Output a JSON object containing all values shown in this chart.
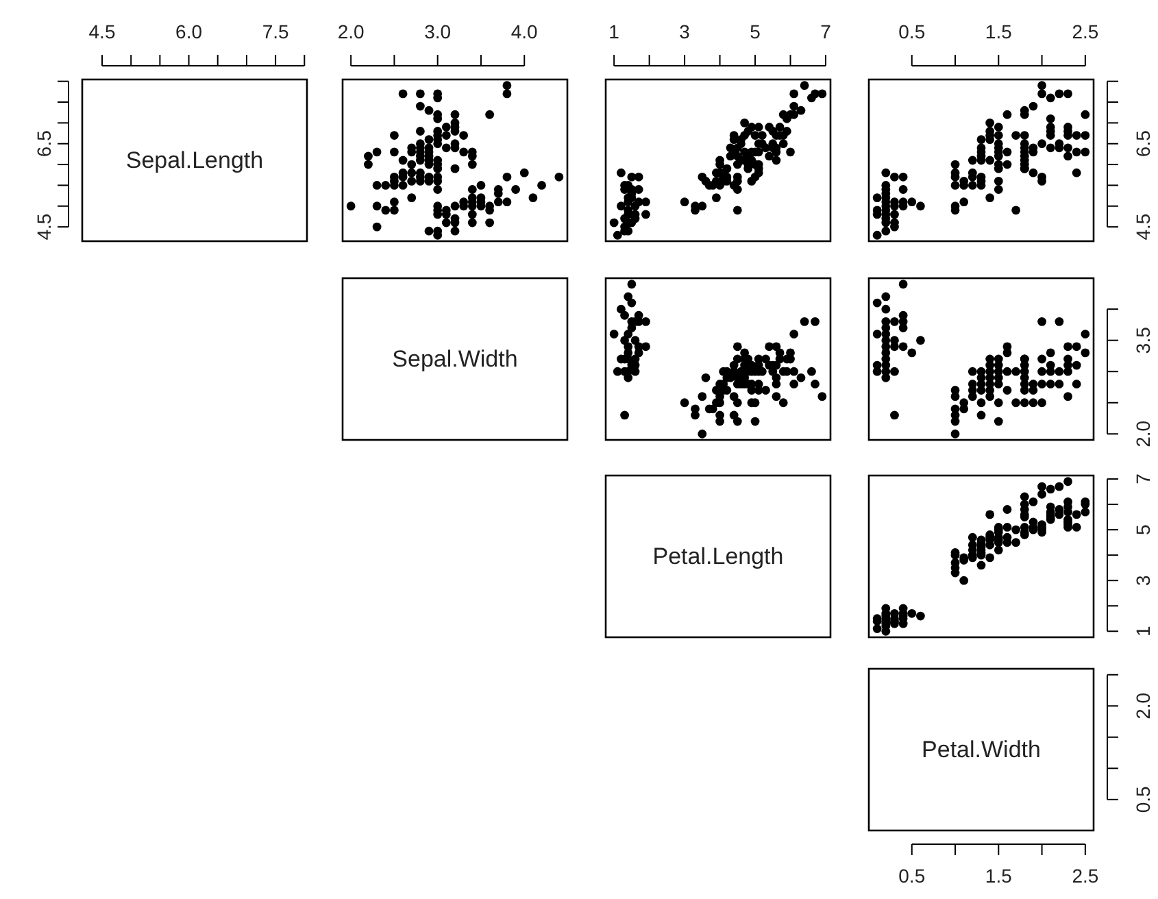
{
  "chart_data": [
    {
      "type": "scatter",
      "title": "Sepal.Length",
      "xlim": [
        4.156,
        8.044
      ],
      "xticks": [
        4.5,
        {
          "value": 5,
          "label": null
        },
        {
          "value": 5.5,
          "label": null
        },
        {
          "value": 6,
          "label": "6.0"
        },
        {
          "value": 6.5,
          "label": null
        },
        {
          "value": 7,
          "label": null
        },
        7.5,
        {
          "value": 8,
          "label": null
        }
      ],
      "ylim": [
        4.156,
        8.044
      ],
      "yticks": [
        4.5,
        {
          "value": 5,
          "label": null
        },
        {
          "value": 5.5,
          "label": null
        },
        {
          "value": 6,
          "label": null
        },
        6.5,
        {
          "value": 7,
          "label": null
        },
        {
          "value": 7.5,
          "label": null
        },
        {
          "value": 8,
          "label": null
        }
      ]
    },
    {
      "type": "scatter",
      "marker": "circle",
      "tick_labels": "x",
      "xlim": [
        1.904,
        4.496
      ],
      "xticks": [
        {
          "value": 2,
          "label": "2.0"
        },
        {
          "value": 2.5,
          "label": null
        },
        {
          "value": 3,
          "label": "3.0"
        },
        {
          "value": 3.5,
          "label": null
        },
        {
          "value": 4,
          "label": "4.0"
        }
      ],
      "ylim": [
        4.156,
        8.044
      ],
      "series": [
        {
          "color": "#000000",
          "x": [
            3.5,
            3.0,
            3.2,
            3.1,
            3.6,
            3.9,
            3.4,
            3.4,
            2.9,
            3.1,
            3.7,
            3.4,
            3.0,
            3.0,
            4.0,
            4.4,
            3.8,
            3.8,
            3.4,
            3.7,
            3.6,
            3.3,
            3.0,
            3.5,
            3.4,
            3.1,
            4.1,
            4.2,
            3.2,
            3.5,
            3.6,
            3.0,
            3.4,
            3.5,
            2.3,
            3.2,
            3.2,
            3.7,
            3.3,
            3.2,
            3.2,
            3.1,
            2.3,
            2.8,
            2.8,
            3.3,
            2.4,
            2.9,
            2.7,
            2.0,
            3.0,
            2.2,
            2.9,
            2.9,
            3.1,
            3.0,
            2.7,
            2.2,
            2.5,
            3.2,
            2.8,
            2.5,
            2.9,
            3.0,
            2.8,
            3.0,
            2.9,
            2.6,
            2.4,
            2.7,
            3.0,
            3.4,
            2.3,
            2.5,
            2.6,
            3.0,
            2.6,
            2.3,
            2.7,
            3.0,
            2.9,
            2.9,
            2.5,
            3.0,
            2.9,
            3.0,
            3.0,
            2.5,
            2.9,
            2.5,
            3.6,
            3.2,
            2.7,
            3.0,
            2.5,
            2.8,
            3.8,
            2.6,
            3.2,
            2.8,
            2.8,
            2.7,
            3.3,
            3.2,
            2.8,
            2.8,
            3.0,
            2.8,
            3.8,
            2.8,
            2.6,
            3.0,
            3.4,
            3.1,
            3.0,
            3.2,
            3.4
          ],
          "values": [
            5.1,
            4.9,
            4.7,
            4.6,
            5.0,
            5.4,
            4.6,
            5.0,
            4.4,
            4.9,
            5.4,
            4.8,
            4.8,
            4.3,
            5.8,
            5.7,
            5.7,
            5.1,
            5.4,
            5.1,
            4.6,
            5.1,
            5.0,
            5.2,
            5.2,
            4.8,
            5.2,
            5.5,
            5.0,
            5.5,
            4.9,
            4.4,
            5.1,
            5.0,
            4.5,
            4.4,
            4.6,
            5.3,
            5.0,
            7.0,
            6.4,
            6.9,
            5.5,
            6.5,
            5.7,
            6.3,
            4.9,
            6.6,
            5.2,
            5.0,
            5.9,
            6.0,
            6.1,
            5.6,
            6.7,
            5.6,
            5.8,
            6.2,
            5.6,
            5.9,
            6.1,
            6.3,
            6.4,
            6.6,
            6.8,
            6.7,
            6.0,
            5.7,
            5.5,
            6.0,
            5.4,
            6.0,
            6.3,
            5.5,
            5.5,
            6.1,
            5.8,
            5.0,
            5.6,
            5.7,
            5.7,
            6.2,
            5.1,
            7.1,
            6.3,
            6.5,
            7.6,
            4.9,
            7.3,
            6.7,
            7.2,
            6.5,
            6.4,
            6.8,
            5.7,
            5.8,
            7.7,
            7.7,
            6.9,
            5.6,
            7.7,
            6.3,
            6.7,
            7.2,
            6.2,
            6.4,
            7.2,
            7.4,
            7.9,
            6.3,
            6.1,
            7.7,
            6.3,
            6.4,
            6.0,
            6.8,
            6.2
          ]
        }
      ]
    },
    {
      "type": "scatter",
      "marker": "circle",
      "tick_labels": "x",
      "xlim": [
        0.764,
        7.136
      ],
      "xticks": [
        1,
        {
          "value": 2,
          "label": null
        },
        3,
        {
          "value": 4,
          "label": null
        },
        5,
        {
          "value": 6,
          "label": null
        },
        7
      ],
      "ylim": [
        4.156,
        8.044
      ],
      "series": [
        {
          "color": "#000000",
          "x": [
            1.4,
            1.4,
            1.3,
            1.5,
            1.7,
            1.4,
            1.4,
            1.5,
            1.6,
            1.4,
            1.1,
            1.2,
            1.5,
            1.3,
            1.7,
            1.0,
            1.7,
            1.9,
            1.6,
            1.5,
            1.4,
            1.6,
            1.4,
            1.2,
            1.3,
            1.3,
            1.3,
            1.9,
            1.5,
            4.7,
            4.5,
            4.9,
            4.0,
            4.6,
            4.5,
            4.7,
            3.3,
            4.6,
            3.9,
            3.5,
            4.2,
            4.0,
            4.7,
            3.6,
            4.4,
            4.5,
            4.1,
            4.5,
            3.9,
            4.8,
            4.0,
            4.9,
            4.3,
            4.4,
            4.8,
            5.0,
            4.5,
            3.5,
            3.8,
            3.7,
            3.9,
            5.1,
            4.5,
            4.7,
            4.4,
            4.1,
            4.4,
            4.6,
            4.0,
            3.3,
            4.2,
            4.2,
            4.3,
            3.0,
            4.1,
            6.0,
            5.1,
            5.9,
            5.6,
            5.8,
            6.6,
            4.5,
            6.3,
            5.8,
            6.1,
            5.1,
            5.3,
            5.5,
            5.0,
            5.5,
            6.7,
            6.9,
            5.0,
            5.7,
            4.9,
            5.7,
            6.0,
            4.8,
            4.9,
            5.6,
            5.8,
            6.1,
            6.4,
            5.1,
            5.6,
            6.1,
            5.5,
            4.8,
            5.4,
            5.6,
            5.1,
            5.9,
            5.2,
            5.0,
            5.2,
            5.4,
            5.1
          ],
          "values": [
            5.1,
            4.9,
            4.7,
            4.6,
            5.4,
            4.6,
            4.4,
            5.4,
            4.8,
            4.8,
            4.3,
            5.8,
            5.7,
            5.4,
            5.7,
            4.6,
            5.1,
            4.8,
            5.0,
            5.2,
            5.2,
            4.7,
            5.5,
            5.0,
            5.5,
            4.4,
            4.5,
            5.1,
            5.3,
            7.0,
            6.4,
            6.9,
            5.5,
            6.5,
            5.7,
            6.3,
            4.9,
            6.6,
            5.2,
            5.0,
            5.9,
            6.0,
            6.1,
            5.6,
            6.7,
            5.6,
            5.8,
            6.2,
            5.6,
            5.9,
            6.1,
            6.3,
            6.4,
            6.6,
            6.8,
            6.7,
            6.0,
            5.7,
            5.5,
            5.5,
            5.8,
            6.0,
            5.4,
            6.7,
            6.3,
            5.6,
            5.5,
            6.1,
            5.8,
            5.0,
            5.6,
            5.7,
            6.2,
            5.1,
            5.7,
            6.3,
            5.8,
            7.1,
            6.3,
            6.5,
            7.6,
            4.9,
            7.3,
            6.7,
            7.2,
            6.5,
            6.4,
            6.8,
            5.7,
            6.5,
            7.7,
            7.7,
            6.0,
            6.9,
            5.6,
            6.7,
            7.2,
            6.2,
            6.1,
            6.4,
            7.2,
            7.4,
            7.9,
            6.3,
            6.1,
            7.7,
            6.4,
            6.0,
            6.9,
            6.7,
            6.9,
            6.8,
            6.7,
            6.3,
            6.5,
            6.2,
            5.9
          ]
        }
      ]
    },
    {
      "type": "scatter",
      "marker": "circle",
      "xlim": [
        0.004,
        2.596
      ],
      "xticks": [
        0.5,
        {
          "value": 1,
          "label": null
        },
        1.5,
        {
          "value": 2,
          "label": null
        },
        2.5
      ],
      "ylim": [
        4.156,
        8.044
      ],
      "yticks": [
        4.5,
        {
          "value": 5,
          "label": null
        },
        {
          "value": 5.5,
          "label": null
        },
        {
          "value": 6,
          "label": null
        },
        6.5,
        {
          "value": 7,
          "label": null
        },
        {
          "value": 7.5,
          "label": null
        },
        {
          "value": 8,
          "label": null
        }
      ],
      "series": [
        {
          "color": "#000000",
          "x": [
            0.2,
            0.2,
            0.2,
            0.2,
            0.2,
            0.4,
            0.3,
            0.2,
            0.1,
            0.2,
            0.2,
            0.1,
            0.1,
            0.2,
            0.4,
            0.3,
            0.3,
            0.4,
            0.5,
            0.4,
            0.2,
            0.1,
            0.2,
            0.3,
            0.3,
            0.6,
            0.3,
            0.2,
            1.4,
            1.5,
            1.5,
            1.3,
            1.5,
            1.3,
            1.6,
            1.0,
            1.3,
            1.4,
            1.0,
            1.5,
            1.0,
            1.4,
            1.3,
            1.4,
            1.5,
            1.0,
            1.5,
            1.1,
            1.8,
            1.3,
            1.5,
            1.2,
            1.3,
            1.4,
            1.4,
            1.7,
            1.5,
            1.0,
            1.1,
            1.0,
            1.2,
            1.6,
            1.5,
            1.5,
            1.3,
            1.2,
            1.2,
            1.3,
            1.1,
            2.5,
            1.9,
            2.1,
            1.8,
            2.2,
            2.1,
            1.7,
            1.8,
            1.8,
            2.5,
            2.0,
            1.9,
            2.1,
            2.0,
            2.4,
            2.3,
            1.8,
            2.2,
            2.3,
            2.3,
            2.0,
            2.0,
            2.1,
            1.8,
            1.8,
            1.8,
            2.1,
            1.6,
            1.9,
            2.0,
            2.2,
            2.4,
            1.8,
            1.8,
            2.1,
            2.4,
            2.3,
            2.5,
            2.3,
            1.9,
            2.3,
            1.8
          ],
          "values": [
            5.1,
            4.9,
            4.7,
            4.6,
            5.0,
            5.4,
            4.6,
            4.4,
            4.9,
            5.4,
            4.8,
            4.8,
            4.3,
            5.8,
            5.7,
            5.1,
            5.7,
            5.1,
            5.1,
            5.0,
            5.2,
            5.2,
            5.5,
            5.0,
            4.5,
            5.0,
            4.8,
            5.3,
            7.0,
            6.4,
            6.9,
            5.5,
            6.5,
            5.7,
            6.3,
            4.9,
            6.6,
            5.2,
            5.0,
            5.9,
            6.0,
            6.1,
            5.6,
            6.7,
            5.6,
            5.8,
            6.2,
            5.6,
            5.9,
            6.1,
            6.3,
            6.1,
            6.4,
            6.6,
            6.8,
            6.7,
            6.0,
            5.7,
            5.5,
            5.5,
            5.8,
            6.0,
            5.4,
            6.7,
            6.3,
            5.5,
            5.7,
            6.2,
            5.1,
            6.3,
            5.8,
            7.1,
            6.3,
            6.5,
            7.6,
            4.9,
            7.3,
            6.7,
            7.2,
            6.5,
            6.4,
            6.8,
            5.7,
            5.8,
            6.4,
            6.5,
            7.7,
            7.7,
            6.9,
            5.6,
            7.7,
            6.7,
            7.2,
            6.2,
            6.1,
            6.4,
            7.2,
            7.4,
            7.9,
            6.4,
            6.3,
            6.4,
            6.0,
            6.9,
            6.7,
            6.8,
            6.7,
            6.7,
            6.3,
            6.2,
            5.9
          ]
        }
      ]
    },
    {
      "type": "other",
      "title": "Sepal.Width"
    },
    {
      "type": "scatter",
      "marker": "circle",
      "tick_labels": false,
      "xlim": [
        0.764,
        7.136
      ],
      "ylim": [
        1.904,
        4.496
      ],
      "series": [
        {
          "color": "#000000",
          "x": [
            1.4,
            1.3,
            1.5,
            1.4,
            1.7,
            1.4,
            1.4,
            1.5,
            1.1,
            1.2,
            1.5,
            1.3,
            1.7,
            1.5,
            1.7,
            1.0,
            1.7,
            1.9,
            1.6,
            1.6,
            1.6,
            1.5,
            1.4,
            1.2,
            1.3,
            1.3,
            1.3,
            1.6,
            1.9,
            1.6,
            1.4,
            1.4,
            4.7,
            4.5,
            4.9,
            4.0,
            4.6,
            4.5,
            4.7,
            3.3,
            3.9,
            3.5,
            4.2,
            4.0,
            4.7,
            3.6,
            4.4,
            4.1,
            4.5,
            3.9,
            4.8,
            4.0,
            4.9,
            4.7,
            4.3,
            4.4,
            4.8,
            5.0,
            4.5,
            3.5,
            3.8,
            3.7,
            5.1,
            4.5,
            4.7,
            4.4,
            4.1,
            4.0,
            4.4,
            4.6,
            4.0,
            3.3,
            4.2,
            4.2,
            3.0,
            4.1,
            6.0,
            5.9,
            5.6,
            5.8,
            6.6,
            4.5,
            6.3,
            5.8,
            6.1,
            5.1,
            5.3,
            5.5,
            5.0,
            5.1,
            5.3,
            6.7,
            6.9,
            5.0,
            5.7,
            4.9,
            6.7,
            4.9,
            5.7,
            6.0,
            4.9,
            5.6,
            6.1,
            6.4,
            5.6,
            6.1,
            5.6,
            5.5,
            4.8,
            5.4,
            5.6,
            5.1,
            5.9,
            5.2,
            5.4,
            5.1
          ],
          "values": [
            3.0,
            3.2,
            3.1,
            3.6,
            3.9,
            3.4,
            2.9,
            3.7,
            3.0,
            4.0,
            4.4,
            3.9,
            3.8,
            3.8,
            3.4,
            3.6,
            3.3,
            3.4,
            3.0,
            3.2,
            3.1,
            4.1,
            4.2,
            3.2,
            3.5,
            3.0,
            2.3,
            3.5,
            3.8,
            3.8,
            3.2,
            3.3,
            3.2,
            3.2,
            3.1,
            2.3,
            2.8,
            2.8,
            3.3,
            2.4,
            2.7,
            2.0,
            3.0,
            2.2,
            2.9,
            2.9,
            3.1,
            2.7,
            2.2,
            2.5,
            3.2,
            2.8,
            2.5,
            2.8,
            2.9,
            3.0,
            2.8,
            3.0,
            2.9,
            2.6,
            2.4,
            2.4,
            2.7,
            3.4,
            3.1,
            2.3,
            3.0,
            2.5,
            2.6,
            3.0,
            2.6,
            2.3,
            2.7,
            2.9,
            2.5,
            2.8,
            3.3,
            3.0,
            2.9,
            3.0,
            3.0,
            2.5,
            2.9,
            2.5,
            3.6,
            3.2,
            2.7,
            3.0,
            2.5,
            2.8,
            3.2,
            3.8,
            2.6,
            2.2,
            3.2,
            2.8,
            2.8,
            2.7,
            3.3,
            3.2,
            3.0,
            2.8,
            2.8,
            3.8,
            2.6,
            3.0,
            3.4,
            3.1,
            3.0,
            3.1,
            3.1,
            3.1,
            3.2,
            3.0,
            3.4,
            3.0
          ]
        }
      ]
    },
    {
      "type": "scatter",
      "marker": "circle",
      "tick_labels": "y",
      "xlim": [
        0.004,
        2.596
      ],
      "ylim": [
        1.904,
        4.496
      ],
      "yticks": [
        {
          "value": 2,
          "label": "2.0"
        },
        {
          "value": 2.5,
          "label": null
        },
        {
          "value": 3,
          "label": null
        },
        3.5,
        {
          "value": 4,
          "label": null
        }
      ],
      "series": [
        {
          "color": "#000000",
          "x": [
            0.2,
            0.2,
            0.2,
            0.2,
            0.2,
            0.4,
            0.3,
            0.2,
            0.2,
            0.1,
            0.2,
            0.1,
            0.2,
            0.4,
            0.3,
            0.3,
            0.4,
            0.5,
            0.4,
            0.1,
            0.2,
            0.1,
            0.3,
            0.6,
            0.4,
            0.3,
            0.2,
            0.2,
            1.4,
            1.5,
            1.5,
            1.3,
            1.5,
            1.3,
            1.6,
            1.0,
            1.3,
            1.4,
            1.0,
            1.5,
            1.0,
            1.4,
            1.4,
            1.0,
            1.5,
            1.1,
            1.8,
            1.5,
            1.2,
            1.4,
            1.4,
            1.7,
            1.5,
            1.0,
            1.1,
            1.2,
            1.6,
            1.6,
            1.3,
            1.3,
            1.2,
            1.0,
            1.3,
            1.2,
            2.5,
            1.9,
            2.1,
            1.8,
            2.2,
            1.7,
            1.8,
            2.5,
            2.0,
            2.0,
            2.4,
            2.3,
            1.8,
            2.2,
            2.3,
            2.0,
            1.8,
            2.1,
            1.8,
            1.8,
            2.1,
            1.6,
            1.9,
            2.0,
            2.2,
            1.4,
            2.3,
            2.4,
            1.8,
            2.1,
            2.4,
            2.3,
            1.9,
            2.0,
            2.3
          ],
          "values": [
            3.5,
            3.0,
            3.2,
            3.1,
            3.6,
            3.9,
            3.4,
            3.4,
            2.9,
            3.1,
            3.7,
            3.0,
            4.0,
            4.4,
            3.5,
            3.8,
            3.7,
            3.3,
            3.4,
            4.1,
            4.2,
            3.6,
            2.3,
            3.5,
            3.8,
            3.0,
            3.8,
            3.3,
            3.2,
            3.2,
            3.1,
            2.3,
            2.8,
            2.8,
            3.3,
            2.4,
            2.9,
            2.7,
            2.0,
            3.0,
            2.2,
            2.9,
            3.1,
            2.7,
            2.2,
            2.5,
            3.2,
            2.5,
            2.8,
            3.0,
            2.8,
            3.0,
            2.9,
            2.6,
            2.4,
            2.7,
            2.7,
            3.4,
            3.0,
            2.5,
            2.6,
            2.3,
            2.7,
            3.0,
            3.3,
            2.7,
            3.0,
            2.9,
            3.0,
            2.5,
            2.5,
            3.6,
            3.2,
            2.5,
            2.8,
            3.2,
            3.0,
            3.8,
            2.6,
            2.8,
            2.7,
            3.3,
            3.2,
            2.8,
            2.8,
            3.0,
            2.8,
            3.8,
            2.8,
            2.6,
            3.0,
            3.4,
            3.1,
            3.1,
            3.1,
            3.1,
            2.5,
            3.0,
            3.4
          ]
        }
      ]
    },
    {
      "type": "other",
      "title": "Petal.Length"
    },
    {
      "type": "scatter",
      "marker": "circle",
      "tick_labels": "y",
      "xlim": [
        0.004,
        2.596
      ],
      "ylim": [
        0.764,
        7.136
      ],
      "yticks": [
        1,
        {
          "value": 2,
          "label": null
        },
        3,
        {
          "value": 4,
          "label": null
        },
        5,
        {
          "value": 6,
          "label": null
        },
        7
      ],
      "series": [
        {
          "color": "#000000",
          "x": [
            0.2,
            0.2,
            0.2,
            0.4,
            0.3,
            0.1,
            0.2,
            0.1,
            0.1,
            0.2,
            0.4,
            0.4,
            0.3,
            0.3,
            0.2,
            0.2,
            0.5,
            0.2,
            0.4,
            0.3,
            0.6,
            0.4,
            1.4,
            1.5,
            1.5,
            1.3,
            1.5,
            1.3,
            1.6,
            1.0,
            1.3,
            1.4,
            1.0,
            1.5,
            1.0,
            1.3,
            1.4,
            1.0,
            1.1,
            1.8,
            1.2,
            1.3,
            1.4,
            1.7,
            1.1,
            1.0,
            1.2,
            1.6,
            1.6,
            1.5,
            1.3,
            1.3,
            1.2,
            1.4,
            1.2,
            1.3,
            1.2,
            1.1,
            2.5,
            1.9,
            2.1,
            1.8,
            2.2,
            2.1,
            1.7,
            1.8,
            1.8,
            2.5,
            2.0,
            1.9,
            2.1,
            2.0,
            2.4,
            2.3,
            1.8,
            2.2,
            2.3,
            1.5,
            2.3,
            2.0,
            2.0,
            1.8,
            2.1,
            1.8,
            2.1,
            1.6,
            1.9,
            2.0,
            2.2,
            1.5,
            1.4,
            2.3,
            2.4,
            2.1,
            2.3,
            2.3,
            2.5,
            2.3,
            1.9,
            2.0,
            2.3,
            1.8
          ],
          "values": [
            1.4,
            1.3,
            1.5,
            1.7,
            1.4,
            1.5,
            1.6,
            1.4,
            1.1,
            1.2,
            1.5,
            1.3,
            1.7,
            1.5,
            1.7,
            1.0,
            1.7,
            1.9,
            1.6,
            1.3,
            1.6,
            1.9,
            4.7,
            4.5,
            4.9,
            4.0,
            4.6,
            4.5,
            4.7,
            3.3,
            4.6,
            3.9,
            3.5,
            4.2,
            4.0,
            3.6,
            4.4,
            4.1,
            3.9,
            4.8,
            4.7,
            4.3,
            4.8,
            5.0,
            3.8,
            3.7,
            3.9,
            5.1,
            4.5,
            4.7,
            4.4,
            4.1,
            4.4,
            4.6,
            4.0,
            4.2,
            4.2,
            3.0,
            6.0,
            5.1,
            5.9,
            5.6,
            5.8,
            6.6,
            4.5,
            6.3,
            5.8,
            6.1,
            5.1,
            5.3,
            5.5,
            5.0,
            5.1,
            5.3,
            5.5,
            6.7,
            6.9,
            5.0,
            5.7,
            4.9,
            6.7,
            4.9,
            5.7,
            6.0,
            5.6,
            5.8,
            6.1,
            6.4,
            5.6,
            5.1,
            5.6,
            6.1,
            5.6,
            5.4,
            5.1,
            5.9,
            5.7,
            5.2,
            5.0,
            5.2,
            5.4,
            5.1
          ]
        }
      ]
    },
    {
      "type": "scatter",
      "title": "Petal.Width",
      "xlim": [
        0.004,
        2.596
      ],
      "xticks": [
        0.5,
        {
          "value": 1,
          "label": null
        },
        1.5,
        {
          "value": 2,
          "label": null
        },
        2.5
      ],
      "ylim": [
        0.004,
        2.596
      ],
      "yticks": [
        0.5,
        {
          "value": 1,
          "label": null
        },
        {
          "value": 1.5,
          "label": null
        },
        {
          "value": 2,
          "label": "2.0"
        },
        {
          "value": 2.5,
          "label": null
        }
      ]
    }
  ]
}
